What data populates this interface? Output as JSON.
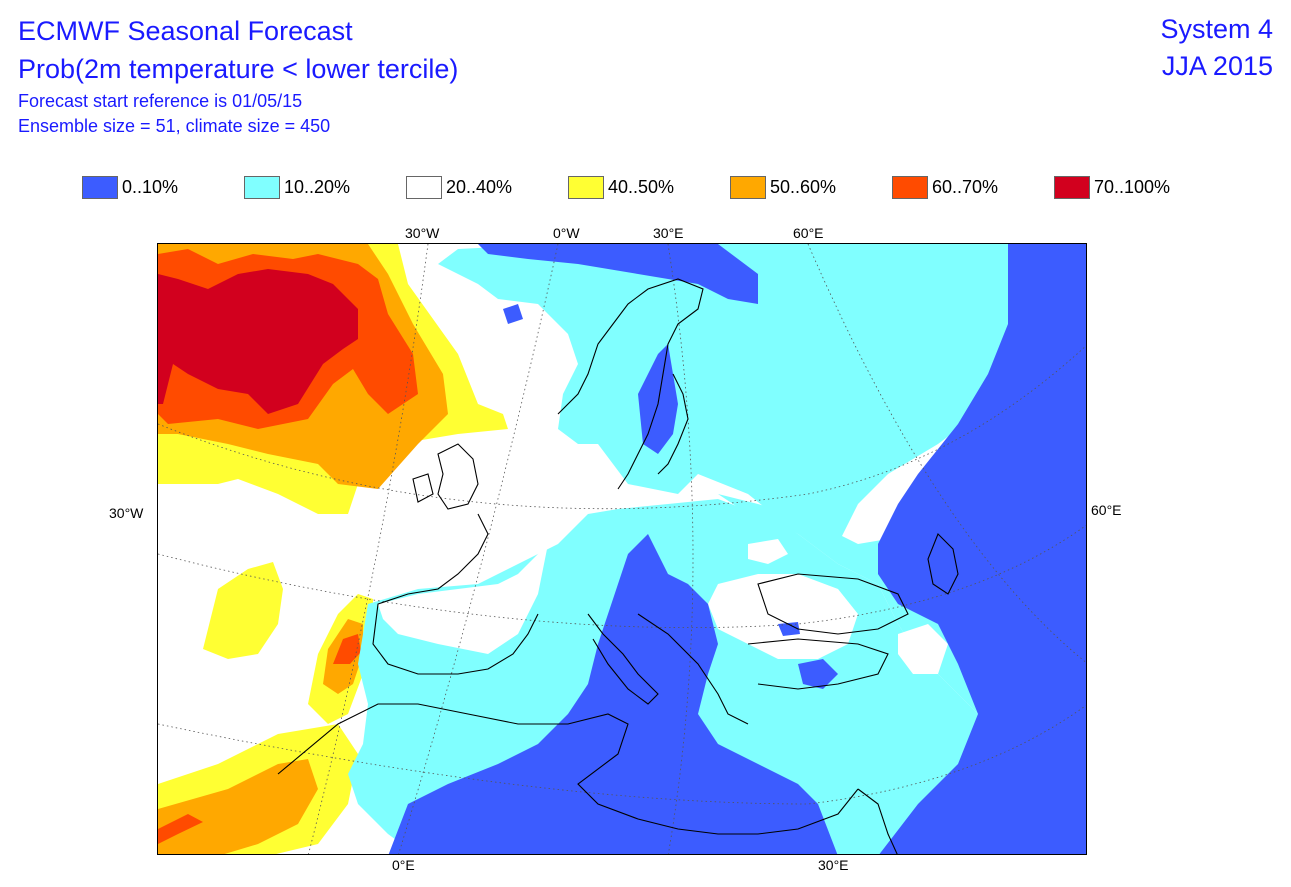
{
  "header": {
    "title": "ECMWF Seasonal Forecast",
    "subtitle": "Prob(2m temperature < lower tercile)",
    "start_reference": "Forecast start reference is 01/05/15",
    "ensemble": "Ensemble size = 51, climate size = 450",
    "system": "System 4",
    "season": "JJA 2015"
  },
  "legend": {
    "items": [
      {
        "label": "0..10%",
        "color": "#3c5cff"
      },
      {
        "label": "10..20%",
        "color": "#80ffff"
      },
      {
        "label": "20..40%",
        "color": "#ffffff"
      },
      {
        "label": "40..50%",
        "color": "#ffff33"
      },
      {
        "label": "50..60%",
        "color": "#ffa800"
      },
      {
        "label": "60..70%",
        "color": "#ff4b00"
      },
      {
        "label": "70..100%",
        "color": "#d2001e"
      }
    ]
  },
  "axes": {
    "top": [
      "30°W",
      "0°W",
      "30°E",
      "60°E"
    ],
    "left": [
      "30°W"
    ],
    "right": [
      "60°E"
    ],
    "bottom": [
      "0°E",
      "30°E"
    ]
  }
}
